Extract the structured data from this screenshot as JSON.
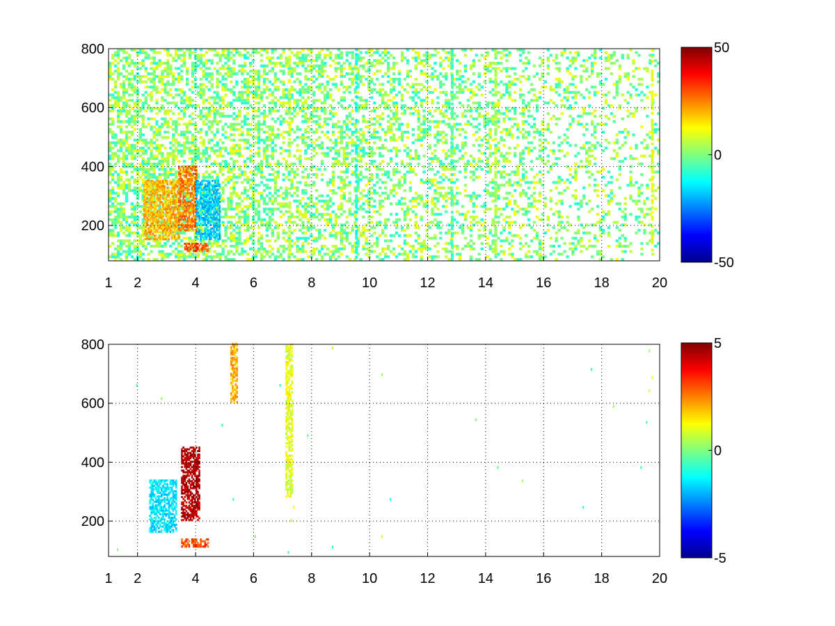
{
  "chart_data": [
    {
      "type": "heatmap",
      "title": "",
      "xlabel": "",
      "ylabel": "",
      "xlim": [
        1,
        20
      ],
      "ylim": [
        80,
        800
      ],
      "x_ticks": [
        1,
        2,
        4,
        6,
        8,
        10,
        12,
        14,
        16,
        18,
        20
      ],
      "x_tick_labels": [
        "1",
        "2",
        "4",
        "6",
        "8",
        "10",
        "12",
        "14",
        "16",
        "18",
        "20"
      ],
      "y_ticks": [
        200,
        400,
        600,
        800
      ],
      "y_tick_labels": [
        "200",
        "400",
        "600",
        "800"
      ],
      "grid": true,
      "colormap": "jet",
      "colorbar": {
        "range": [
          -50,
          50
        ],
        "ticks": [
          50,
          0,
          -50
        ],
        "tick_labels": [
          "50",
          "0",
          "-50"
        ]
      },
      "regions": [
        {
          "x": [
            2.2,
            3.4
          ],
          "y": [
            150,
            350
          ],
          "value": 20
        },
        {
          "x": [
            3.4,
            4.0
          ],
          "y": [
            180,
            400
          ],
          "value": 25
        },
        {
          "x": [
            3.6,
            4.4
          ],
          "y": [
            110,
            140
          ],
          "value": 30
        },
        {
          "x": [
            4.0,
            4.8
          ],
          "y": [
            150,
            350
          ],
          "value": -18
        }
      ],
      "columns": [
        {
          "x": 7.2,
          "value": 8
        },
        {
          "x": 9.5,
          "value": -10
        },
        {
          "x": 12.8,
          "value": -5
        },
        {
          "x": 14.3,
          "value": 5
        },
        {
          "x": 19.7,
          "value": 10
        }
      ]
    },
    {
      "type": "heatmap",
      "title": "",
      "xlabel": "",
      "ylabel": "",
      "xlim": [
        1,
        20
      ],
      "ylim": [
        80,
        800
      ],
      "x_ticks": [
        1,
        2,
        4,
        6,
        8,
        10,
        12,
        14,
        16,
        18,
        20
      ],
      "x_tick_labels": [
        "1",
        "2",
        "4",
        "6",
        "8",
        "10",
        "12",
        "14",
        "16",
        "18",
        "20"
      ],
      "y_ticks": [
        200,
        400,
        600,
        800
      ],
      "y_tick_labels": [
        "200",
        "400",
        "600",
        "800"
      ],
      "grid": true,
      "colormap": "jet",
      "colorbar": {
        "range": [
          -5,
          5
        ],
        "ticks": [
          5,
          0,
          -5
        ],
        "tick_labels": [
          "5",
          "0",
          "-5"
        ]
      },
      "regions": [
        {
          "x": [
            2.4,
            3.3
          ],
          "y": [
            160,
            340
          ],
          "value": -1.5
        },
        {
          "x": [
            3.5,
            4.1
          ],
          "y": [
            200,
            450
          ],
          "value": 4.5
        },
        {
          "x": [
            3.5,
            4.4
          ],
          "y": [
            110,
            140
          ],
          "value": 3
        },
        {
          "x": [
            5.2,
            5.4
          ],
          "y": [
            600,
            800
          ],
          "value": 2
        },
        {
          "x": [
            7.1,
            7.3
          ],
          "y": [
            280,
            800
          ],
          "value": 1
        }
      ]
    }
  ]
}
